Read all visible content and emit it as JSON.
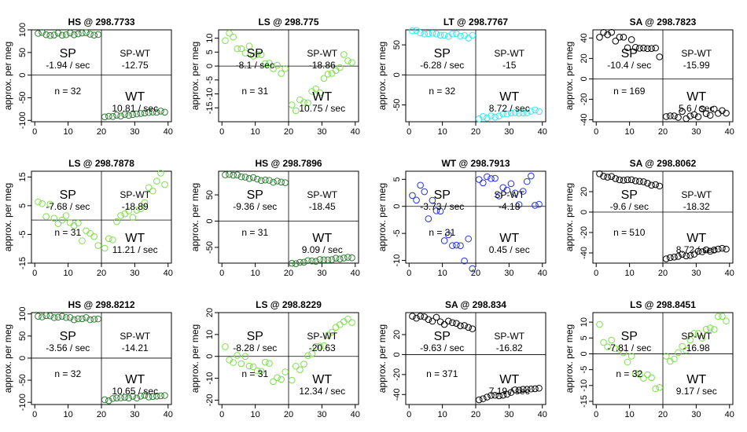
{
  "figure": {
    "ylabel": "approx. per meg",
    "xticks": [
      0,
      10,
      20,
      30,
      40
    ]
  },
  "chart_data": [
    {
      "type": "scatter",
      "title": "HS @ 298.7733",
      "color": "#2e7d32",
      "ylim": [
        -103,
        100
      ],
      "yticks": [
        -100,
        -50,
        0,
        50,
        100
      ],
      "sp": {
        "label": "SP",
        "rate": "-1.94 / sec",
        "start": 91,
        "end": 90,
        "amp": 4
      },
      "wt": {
        "label": "WT",
        "rate": "10.81 / sec",
        "start": -92,
        "end": -80,
        "amp": 2
      },
      "diff": "SP-WT\n-12.75",
      "n": "n = 32"
    },
    {
      "type": "scatter",
      "title": "LS @ 298.775",
      "color": "#7ee04a",
      "ylim": [
        -20,
        13
      ],
      "yticks": [
        -15,
        -10,
        -5,
        0,
        5,
        10
      ],
      "sp": {
        "label": "SP",
        "rate": "-8.1 / sec",
        "start": 11,
        "end": -2,
        "amp": 2.5
      },
      "wt": {
        "label": "WT",
        "rate": "10.75 / sec",
        "start": -16,
        "end": 4,
        "amp": 3
      },
      "diff": "SP-WT\n-18.86",
      "n": "n = 31"
    },
    {
      "type": "scatter",
      "title": "LT @ 298.7767",
      "color": "#33e8ee",
      "ylim": [
        -78,
        75
      ],
      "yticks": [
        -50,
        0,
        50
      ],
      "sp": {
        "label": "SP",
        "rate": "-6.28 / sec",
        "start": 73,
        "end": 63,
        "amp": 3
      },
      "wt": {
        "label": "WT",
        "rate": "8.72 / sec",
        "start": -72,
        "end": -59,
        "amp": 2
      },
      "diff": "SP-WT\n-15",
      "n": "n = 32"
    },
    {
      "type": "scatter",
      "title": "SA @ 298.7823",
      "color": "#000000",
      "ylim": [
        -42,
        48
      ],
      "yticks": [
        -40,
        -20,
        0,
        20,
        40
      ],
      "sp": {
        "label": "SP",
        "rate": "-10.4 / sec",
        "start": 45,
        "end": 24,
        "amp": 5
      },
      "wt": {
        "label": "WT",
        "rate": "5.6 / sec",
        "start": -38,
        "end": -30,
        "amp": 4
      },
      "diff": "SP-WT\n-15.99",
      "n": "n = 169"
    },
    {
      "type": "scatter",
      "title": "LS @ 298.7878",
      "color": "#7ee04a",
      "ylim": [
        -15,
        17
      ],
      "yticks": [
        -15,
        -5,
        5,
        15
      ],
      "sp": {
        "label": "SP",
        "rate": "-7.68 / sec",
        "start": 6,
        "end": -9,
        "amp": 3
      },
      "wt": {
        "label": "WT",
        "rate": "11.21 / sec",
        "start": -7,
        "end": 15,
        "amp": 3
      },
      "diff": "SP-WT\n-18.89",
      "n": "n = 31"
    },
    {
      "type": "scatter",
      "title": "HS @ 298.7896",
      "color": "#2e7d32",
      "ylim": [
        -80,
        95
      ],
      "yticks": [
        -50,
        0,
        50
      ],
      "sp": {
        "label": "SP",
        "rate": "-9.36 / sec",
        "start": 90,
        "end": 72,
        "amp": 2
      },
      "wt": {
        "label": "WT",
        "rate": "9.09 / sec",
        "start": -80,
        "end": -68,
        "amp": 2
      },
      "diff": "SP-WT\n-18.45",
      "n": "n = 31"
    },
    {
      "type": "scatter",
      "title": "WT @ 298.7913",
      "color": "#2432e0",
      "ylim": [
        -10.5,
        6.5
      ],
      "yticks": [
        -10,
        -5,
        0,
        5
      ],
      "sp": {
        "label": "SP",
        "rate": "-3.73 / sec",
        "start": 2,
        "end": -8,
        "amp": 4
      },
      "wt": {
        "label": "WT",
        "rate": "0.45 / sec",
        "start": 3,
        "end": 3,
        "amp": 3
      },
      "diff": "SP-WT\n-4.18",
      "n": "n = 31"
    },
    {
      "type": "scatter",
      "title": "SA @ 298.8062",
      "color": "#000000",
      "ylim": [
        -50,
        40
      ],
      "yticks": [
        -40,
        -20,
        0,
        20
      ],
      "sp": {
        "label": "SP",
        "rate": "-9.6 / sec",
        "start": 36,
        "end": 26,
        "amp": 1.5
      },
      "wt": {
        "label": "WT",
        "rate": "8.72 / sec",
        "start": -45,
        "end": -35,
        "amp": 1.5
      },
      "diff": "SP-WT\n-18.32",
      "n": "n = 510"
    },
    {
      "type": "scatter",
      "title": "HS @ 298.8212",
      "color": "#2e7d32",
      "ylim": [
        -105,
        103
      ],
      "yticks": [
        -100,
        -50,
        0,
        50,
        100
      ],
      "sp": {
        "label": "SP",
        "rate": "-3.56 / sec",
        "start": 95,
        "end": 88,
        "amp": 4
      },
      "wt": {
        "label": "WT",
        "rate": "10.65 / sec",
        "start": -95,
        "end": -82,
        "amp": 3
      },
      "diff": "SP-WT\n-14.21",
      "n": "n = 32"
    },
    {
      "type": "scatter",
      "title": "LS @ 298.8229",
      "color": "#7ee04a",
      "ylim": [
        -22,
        20
      ],
      "yticks": [
        -20,
        -10,
        0,
        10,
        20
      ],
      "sp": {
        "label": "SP",
        "rate": "-8.28 / sec",
        "start": 1,
        "end": -10,
        "amp": 4
      },
      "wt": {
        "label": "WT",
        "rate": "12.34 / sec",
        "start": -8,
        "end": 18,
        "amp": 3
      },
      "diff": "SP-WT\n-20.63",
      "n": "n = 31"
    },
    {
      "type": "scatter",
      "title": "SA @ 298.834",
      "color": "#000000",
      "ylim": [
        -50,
        42
      ],
      "yticks": [
        -40,
        -20,
        0,
        20
      ],
      "sp": {
        "label": "SP",
        "rate": "-9.63 / sec",
        "start": 39,
        "end": 28,
        "amp": 3
      },
      "wt": {
        "label": "WT",
        "rate": "7.19 / sec",
        "start": -45,
        "end": -32,
        "amp": 2
      },
      "diff": "SP-WT\n-16.82",
      "n": "n = 371"
    },
    {
      "type": "scatter",
      "title": "LS @ 298.8451",
      "color": "#7ee04a",
      "ylim": [
        -16,
        13
      ],
      "yticks": [
        -15,
        -10,
        -5,
        0,
        5,
        10
      ],
      "sp": {
        "label": "SP",
        "rate": "-7.81 / sec",
        "start": 7,
        "end": -10,
        "amp": 3
      },
      "wt": {
        "label": "WT",
        "rate": "9.17 / sec",
        "start": -2,
        "end": 12,
        "amp": 2
      },
      "diff": "SP-WT\n-16.98",
      "n": "n = 32"
    }
  ]
}
